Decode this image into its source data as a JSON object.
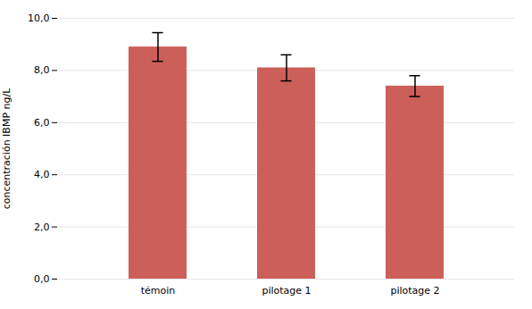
{
  "chart_data": {
    "type": "bar",
    "categories": [
      "témoin",
      "pilotage 1",
      "pilotage 2"
    ],
    "values": [
      8.9,
      8.1,
      7.4
    ],
    "errors": [
      0.55,
      0.5,
      0.4
    ],
    "color": "#cc5f5a",
    "ylabel": "concentración IBMP ng/L",
    "ylim": [
      0,
      10.0
    ],
    "yticks": [
      {
        "value": 0.0,
        "label": "0,0"
      },
      {
        "value": 2.0,
        "label": "2,0"
      },
      {
        "value": 4.0,
        "label": "4,0"
      },
      {
        "value": 6.0,
        "label": "6,0"
      },
      {
        "value": 8.0,
        "label": "8,0"
      },
      {
        "value": 10.0,
        "label": "10,0"
      }
    ],
    "grid": true
  }
}
